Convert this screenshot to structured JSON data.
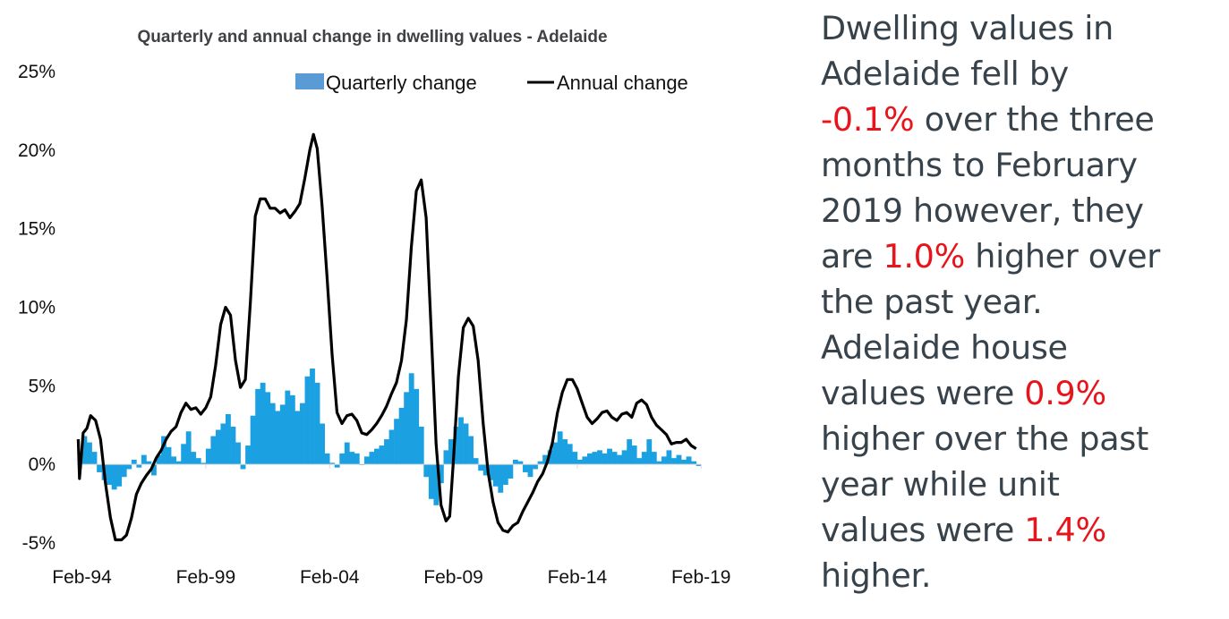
{
  "chart_data": {
    "type": "bar+line",
    "title": "Quarterly and annual change in dwelling values - Adelaide",
    "xlabel": "",
    "ylabel": "",
    "ylim": [
      -5,
      25
    ],
    "yticks": [
      "-5%",
      "0%",
      "5%",
      "10%",
      "15%",
      "20%",
      "25%"
    ],
    "ytick_values": [
      -5,
      0,
      5,
      10,
      15,
      20,
      25
    ],
    "xticks": [
      "Feb-94",
      "Feb-99",
      "Feb-04",
      "Feb-09",
      "Feb-14",
      "Feb-19"
    ],
    "xtick_values": [
      1994.1,
      1999.1,
      2004.1,
      2009.1,
      2014.1,
      2019.1
    ],
    "xlim": [
      1993.9,
      2019.2
    ],
    "grid": false,
    "legend": {
      "position": "top-right",
      "entries": [
        {
          "name": "Quarterly change",
          "type": "bar",
          "color": "#5b9bd5"
        },
        {
          "name": "Annual change",
          "type": "line",
          "color": "#000000"
        }
      ]
    },
    "series": [
      {
        "name": "Quarterly change",
        "type": "bar",
        "color": "#1ba1e2",
        "points": [
          [
            1994.2,
            1.8
          ],
          [
            1994.4,
            1.4
          ],
          [
            1994.6,
            0.8
          ],
          [
            1994.8,
            -0.5
          ],
          [
            1995.0,
            -1.0
          ],
          [
            1995.2,
            -1.3
          ],
          [
            1995.4,
            -1.6
          ],
          [
            1995.6,
            -1.4
          ],
          [
            1995.8,
            -0.8
          ],
          [
            1996.0,
            -0.3
          ],
          [
            1996.2,
            0.3
          ],
          [
            1996.4,
            -0.2
          ],
          [
            1996.6,
            0.6
          ],
          [
            1996.8,
            0.2
          ],
          [
            1997.0,
            -0.7
          ],
          [
            1997.2,
            0.6
          ],
          [
            1997.4,
            1.8
          ],
          [
            1997.6,
            1.1
          ],
          [
            1997.8,
            0.5
          ],
          [
            1998.0,
            0.2
          ],
          [
            1998.2,
            1.3
          ],
          [
            1998.4,
            2.1
          ],
          [
            1998.6,
            0.8
          ],
          [
            1998.8,
            0.4
          ],
          [
            1999.0,
            0.1
          ],
          [
            1999.2,
            1.0
          ],
          [
            1999.4,
            1.8
          ],
          [
            1999.6,
            2.2
          ],
          [
            1999.8,
            2.6
          ],
          [
            2000.0,
            3.2
          ],
          [
            2000.2,
            2.4
          ],
          [
            2000.4,
            1.4
          ],
          [
            2000.6,
            -0.3
          ],
          [
            2000.8,
            1.2
          ],
          [
            2001.0,
            3.1
          ],
          [
            2001.2,
            4.8
          ],
          [
            2001.4,
            5.2
          ],
          [
            2001.6,
            4.6
          ],
          [
            2001.8,
            3.9
          ],
          [
            2002.0,
            3.4
          ],
          [
            2002.2,
            3.8
          ],
          [
            2002.4,
            4.7
          ],
          [
            2002.6,
            4.4
          ],
          [
            2002.8,
            3.4
          ],
          [
            2003.0,
            3.9
          ],
          [
            2003.2,
            5.6
          ],
          [
            2003.4,
            6.1
          ],
          [
            2003.6,
            5.2
          ],
          [
            2003.8,
            2.6
          ],
          [
            2004.0,
            0.7
          ],
          [
            2004.2,
            0.1
          ],
          [
            2004.4,
            -0.2
          ],
          [
            2004.6,
            0.7
          ],
          [
            2004.8,
            1.4
          ],
          [
            2005.0,
            0.8
          ],
          [
            2005.2,
            0.7
          ],
          [
            2005.4,
            0.0
          ],
          [
            2005.6,
            0.5
          ],
          [
            2005.8,
            0.8
          ],
          [
            2006.0,
            1.0
          ],
          [
            2006.2,
            1.2
          ],
          [
            2006.4,
            1.6
          ],
          [
            2006.6,
            2.2
          ],
          [
            2006.8,
            2.9
          ],
          [
            2007.0,
            3.6
          ],
          [
            2007.2,
            4.6
          ],
          [
            2007.4,
            5.8
          ],
          [
            2007.6,
            4.8
          ],
          [
            2007.8,
            2.4
          ],
          [
            2008.0,
            -0.8
          ],
          [
            2008.2,
            -2.2
          ],
          [
            2008.4,
            -2.6
          ],
          [
            2008.6,
            -1.2
          ],
          [
            2008.8,
            0.9
          ],
          [
            2009.0,
            1.6
          ],
          [
            2009.2,
            2.4
          ],
          [
            2009.4,
            3.0
          ],
          [
            2009.6,
            2.6
          ],
          [
            2009.8,
            1.8
          ],
          [
            2010.0,
            0.4
          ],
          [
            2010.2,
            -0.4
          ],
          [
            2010.4,
            -0.7
          ],
          [
            2010.6,
            -1.0
          ],
          [
            2010.8,
            -1.4
          ],
          [
            2011.0,
            -1.8
          ],
          [
            2011.2,
            -1.3
          ],
          [
            2011.4,
            -0.9
          ],
          [
            2011.6,
            0.3
          ],
          [
            2011.8,
            0.2
          ],
          [
            2012.0,
            -0.5
          ],
          [
            2012.2,
            -0.8
          ],
          [
            2012.4,
            -0.3
          ],
          [
            2012.6,
            0.2
          ],
          [
            2012.8,
            0.6
          ],
          [
            2013.0,
            0.9
          ],
          [
            2013.2,
            1.4
          ],
          [
            2013.4,
            2.1
          ],
          [
            2013.6,
            1.6
          ],
          [
            2013.8,
            1.3
          ],
          [
            2014.0,
            0.8
          ],
          [
            2014.2,
            0.3
          ],
          [
            2014.4,
            0.5
          ],
          [
            2014.6,
            0.7
          ],
          [
            2014.8,
            0.8
          ],
          [
            2015.0,
            0.9
          ],
          [
            2015.2,
            0.7
          ],
          [
            2015.4,
            1.0
          ],
          [
            2015.6,
            0.8
          ],
          [
            2015.8,
            0.6
          ],
          [
            2016.0,
            0.9
          ],
          [
            2016.2,
            1.6
          ],
          [
            2016.4,
            1.2
          ],
          [
            2016.6,
            0.4
          ],
          [
            2016.8,
            0.8
          ],
          [
            2017.0,
            1.6
          ],
          [
            2017.2,
            0.8
          ],
          [
            2017.4,
            0.2
          ],
          [
            2017.6,
            0.5
          ],
          [
            2017.8,
            0.9
          ],
          [
            2018.0,
            0.4
          ],
          [
            2018.2,
            0.6
          ],
          [
            2018.4,
            0.3
          ],
          [
            2018.6,
            0.5
          ],
          [
            2018.8,
            0.2
          ],
          [
            2019.0,
            -0.1
          ]
        ]
      },
      {
        "name": "Annual change",
        "type": "line",
        "color": "#000000",
        "points": [
          [
            1993.95,
            1.6
          ],
          [
            1994.0,
            -0.9
          ],
          [
            1994.15,
            2.0
          ],
          [
            1994.3,
            2.3
          ],
          [
            1994.45,
            3.1
          ],
          [
            1994.65,
            2.8
          ],
          [
            1994.85,
            1.6
          ],
          [
            1995.05,
            -1.2
          ],
          [
            1995.25,
            -3.4
          ],
          [
            1995.45,
            -4.8
          ],
          [
            1995.7,
            -4.8
          ],
          [
            1995.9,
            -4.5
          ],
          [
            1996.1,
            -3.4
          ],
          [
            1996.3,
            -1.9
          ],
          [
            1996.5,
            -1.2
          ],
          [
            1996.7,
            -0.7
          ],
          [
            1996.9,
            -0.3
          ],
          [
            1997.1,
            0.4
          ],
          [
            1997.3,
            0.9
          ],
          [
            1997.5,
            1.6
          ],
          [
            1997.7,
            2.1
          ],
          [
            1997.9,
            2.4
          ],
          [
            1998.1,
            3.3
          ],
          [
            1998.3,
            3.9
          ],
          [
            1998.5,
            3.5
          ],
          [
            1998.7,
            3.6
          ],
          [
            1998.9,
            3.2
          ],
          [
            1999.1,
            3.6
          ],
          [
            1999.3,
            4.3
          ],
          [
            1999.5,
            6.3
          ],
          [
            1999.7,
            8.9
          ],
          [
            1999.9,
            10.0
          ],
          [
            2000.1,
            9.5
          ],
          [
            2000.3,
            6.6
          ],
          [
            2000.5,
            4.9
          ],
          [
            2000.7,
            5.4
          ],
          [
            2000.9,
            10.3
          ],
          [
            2001.1,
            15.8
          ],
          [
            2001.3,
            16.9
          ],
          [
            2001.5,
            16.9
          ],
          [
            2001.7,
            16.3
          ],
          [
            2001.9,
            16.3
          ],
          [
            2002.1,
            16.0
          ],
          [
            2002.3,
            16.2
          ],
          [
            2002.5,
            15.7
          ],
          [
            2002.7,
            16.1
          ],
          [
            2002.9,
            16.6
          ],
          [
            2003.1,
            18.2
          ],
          [
            2003.3,
            20.0
          ],
          [
            2003.45,
            21.0
          ],
          [
            2003.6,
            20.1
          ],
          [
            2003.8,
            16.4
          ],
          [
            2004.0,
            11.9
          ],
          [
            2004.2,
            7.0
          ],
          [
            2004.4,
            3.3
          ],
          [
            2004.6,
            2.6
          ],
          [
            2004.8,
            3.1
          ],
          [
            2005.0,
            3.2
          ],
          [
            2005.2,
            2.8
          ],
          [
            2005.4,
            2.0
          ],
          [
            2005.6,
            1.9
          ],
          [
            2005.8,
            2.2
          ],
          [
            2006.0,
            2.6
          ],
          [
            2006.2,
            3.1
          ],
          [
            2006.4,
            3.7
          ],
          [
            2006.6,
            4.5
          ],
          [
            2006.8,
            5.2
          ],
          [
            2007.0,
            6.6
          ],
          [
            2007.2,
            9.2
          ],
          [
            2007.4,
            13.8
          ],
          [
            2007.6,
            17.4
          ],
          [
            2007.8,
            18.1
          ],
          [
            2008.0,
            15.7
          ],
          [
            2008.2,
            8.5
          ],
          [
            2008.4,
            1.3
          ],
          [
            2008.6,
            -2.6
          ],
          [
            2008.8,
            -3.6
          ],
          [
            2008.95,
            -3.3
          ],
          [
            2009.1,
            0.3
          ],
          [
            2009.3,
            5.6
          ],
          [
            2009.5,
            8.7
          ],
          [
            2009.7,
            9.3
          ],
          [
            2009.9,
            8.8
          ],
          [
            2010.1,
            6.6
          ],
          [
            2010.3,
            2.6
          ],
          [
            2010.5,
            -0.5
          ],
          [
            2010.7,
            -2.4
          ],
          [
            2010.9,
            -3.7
          ],
          [
            2011.1,
            -4.2
          ],
          [
            2011.3,
            -4.3
          ],
          [
            2011.5,
            -3.9
          ],
          [
            2011.7,
            -3.7
          ],
          [
            2011.9,
            -3.0
          ],
          [
            2012.1,
            -2.4
          ],
          [
            2012.3,
            -1.8
          ],
          [
            2012.5,
            -1.1
          ],
          [
            2012.7,
            -0.6
          ],
          [
            2012.9,
            0.2
          ],
          [
            2013.1,
            1.4
          ],
          [
            2013.3,
            3.3
          ],
          [
            2013.5,
            4.6
          ],
          [
            2013.7,
            5.4
          ],
          [
            2013.9,
            5.4
          ],
          [
            2014.1,
            4.8
          ],
          [
            2014.3,
            3.9
          ],
          [
            2014.5,
            3.0
          ],
          [
            2014.7,
            2.6
          ],
          [
            2014.9,
            2.9
          ],
          [
            2015.1,
            3.3
          ],
          [
            2015.3,
            3.4
          ],
          [
            2015.5,
            3.0
          ],
          [
            2015.7,
            2.8
          ],
          [
            2015.9,
            3.2
          ],
          [
            2016.1,
            3.3
          ],
          [
            2016.3,
            3.0
          ],
          [
            2016.5,
            3.9
          ],
          [
            2016.7,
            4.1
          ],
          [
            2016.9,
            3.8
          ],
          [
            2017.1,
            3.0
          ],
          [
            2017.3,
            2.5
          ],
          [
            2017.5,
            2.2
          ],
          [
            2017.7,
            1.9
          ],
          [
            2017.9,
            1.3
          ],
          [
            2018.1,
            1.4
          ],
          [
            2018.3,
            1.4
          ],
          [
            2018.5,
            1.6
          ],
          [
            2018.7,
            1.2
          ],
          [
            2018.9,
            1.0
          ]
        ]
      }
    ]
  },
  "commentary": {
    "lines": [
      [
        {
          "text": "Dwelling values in"
        }
      ],
      [
        {
          "text": "Adelaide fell by"
        }
      ],
      [
        {
          "text": "-0.1%",
          "highlight": true
        },
        {
          "text": " over the three"
        }
      ],
      [
        {
          "text": "months to February"
        }
      ],
      [
        {
          "text": "2019 however, they"
        }
      ],
      [
        {
          "text": "are "
        },
        {
          "text": "1.0%",
          "highlight": true
        },
        {
          "text": " higher over"
        }
      ],
      [
        {
          "text": "the past year."
        }
      ],
      [
        {
          "text": "Adelaide house"
        }
      ],
      [
        {
          "text": "values were "
        },
        {
          "text": "0.9%",
          "highlight": true
        }
      ],
      [
        {
          "text": "higher over the past"
        }
      ],
      [
        {
          "text": "year while unit"
        }
      ],
      [
        {
          "text": "values were "
        },
        {
          "text": "1.4%",
          "highlight": true
        }
      ],
      [
        {
          "text": "higher."
        }
      ]
    ],
    "highlight_color": "#e8141b",
    "text_color": "#37424b"
  }
}
